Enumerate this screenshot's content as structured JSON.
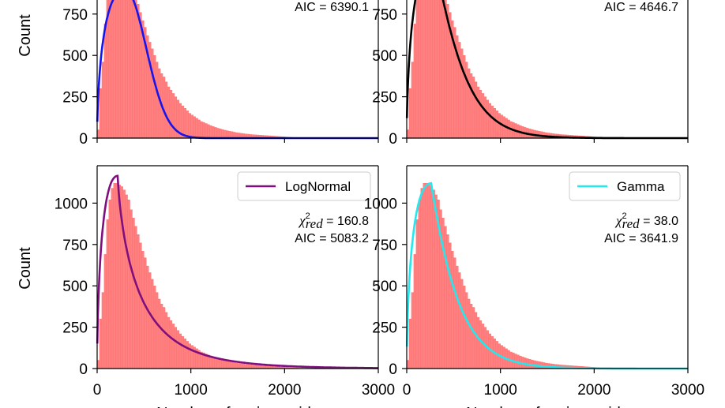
{
  "figure": {
    "y_axis_label": "Count",
    "x_axis_label": "Number of amino acids",
    "hist_color": "#ff8080",
    "hist_edge_color": "#ff6b6b"
  },
  "chart_data": [
    {
      "type": "bar",
      "panel": "top-left",
      "xlim": [
        0,
        3000
      ],
      "ylim": [
        0,
        1150
      ],
      "xticks": [
        "0",
        "1000",
        "2000",
        "3000"
      ],
      "yticks": [
        "0",
        "250",
        "500",
        "750"
      ],
      "show_x_tick_labels": false,
      "show_y_axis_label": true,
      "fit": {
        "color": "#1515ee",
        "mode": 300,
        "peak": 900,
        "right_shape": 2.0
      },
      "legend": null,
      "stats": {
        "aic": "AIC = 6390.1"
      }
    },
    {
      "type": "bar",
      "panel": "top-right",
      "xlim": [
        0,
        3000
      ],
      "ylim": [
        0,
        1150
      ],
      "xticks": [
        "0",
        "1000",
        "2000",
        "3000"
      ],
      "yticks": [
        "0",
        "250",
        "500",
        "750"
      ],
      "show_x_tick_labels": false,
      "show_y_axis_label": false,
      "fit": {
        "color": "#000000",
        "mode": 290,
        "peak": 1080,
        "right_shape": 1.15
      },
      "legend": null,
      "stats": {
        "aic": "AIC = 4646.7"
      }
    },
    {
      "type": "bar",
      "panel": "bottom-left",
      "xlim": [
        0,
        3000
      ],
      "ylim": [
        0,
        1150
      ],
      "xticks": [
        "0",
        "1000",
        "2000",
        "3000"
      ],
      "yticks": [
        "0",
        "250",
        "500",
        "750",
        "1000"
      ],
      "show_x_tick_labels": true,
      "show_y_axis_label": true,
      "fit": {
        "color": "#7f0f7f",
        "mode": 220,
        "peak": 1165,
        "right_shape": 0.75
      },
      "legend": "LogNormal",
      "stats": {
        "chi": "160.8",
        "aic": "AIC = 5083.2"
      }
    },
    {
      "type": "bar",
      "panel": "bottom-right",
      "xlim": [
        0,
        3000
      ],
      "ylim": [
        0,
        1150
      ],
      "xticks": [
        "0",
        "1000",
        "2000",
        "3000"
      ],
      "yticks": [
        "0",
        "250",
        "500",
        "750",
        "1000"
      ],
      "show_x_tick_labels": true,
      "show_y_axis_label": false,
      "fit": {
        "color": "#22e8f0",
        "mode": 260,
        "peak": 1120,
        "right_shape": 1.05
      },
      "legend": "Gamma",
      "stats": {
        "chi": "38.0",
        "aic": "AIC = 3641.9"
      }
    }
  ],
  "histogram": {
    "bin_width": 25,
    "counts": [
      50,
      300,
      460,
      690,
      900,
      1020,
      1090,
      1120,
      1120,
      1110,
      1100,
      1080,
      1050,
      1020,
      960,
      910,
      860,
      810,
      760,
      710,
      670,
      620,
      580,
      540,
      500,
      460,
      420,
      390,
      370,
      340,
      310,
      290,
      270,
      250,
      230,
      210,
      195,
      180,
      165,
      150,
      140,
      130,
      120,
      110,
      100,
      95,
      88,
      82,
      76,
      70,
      65,
      60,
      56,
      52,
      48,
      45,
      42,
      39,
      36,
      33,
      31,
      29,
      27,
      25,
      24,
      22,
      21,
      20,
      19,
      18,
      17,
      16,
      15,
      14,
      13,
      12,
      11,
      10,
      9,
      8,
      7,
      6,
      5,
      4,
      3,
      3,
      2,
      2,
      1,
      1,
      1
    ]
  }
}
